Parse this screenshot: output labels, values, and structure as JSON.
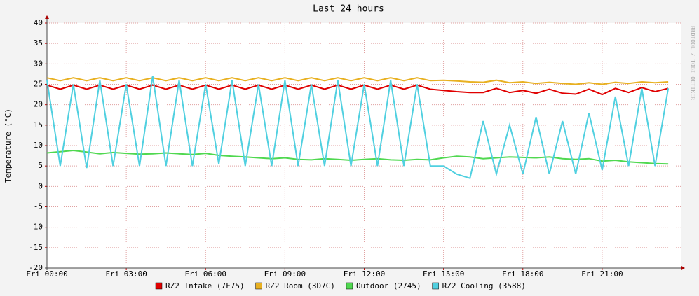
{
  "chart_data": {
    "type": "line",
    "title": "Last 24 hours",
    "y_label": "Temperature (°C)",
    "side_label": "RRDTOOL / TOBI OETIKER",
    "xlim": [
      0,
      24
    ],
    "ylim": [
      -20,
      40
    ],
    "yticks": [
      -20,
      -15,
      -10,
      -5,
      0,
      5,
      10,
      15,
      20,
      25,
      30,
      35,
      40
    ],
    "xticks": [
      {
        "value": 0,
        "label": "Fri 00:00"
      },
      {
        "value": 3,
        "label": "Fri 03:00"
      },
      {
        "value": 6,
        "label": "Fri 06:00"
      },
      {
        "value": 9,
        "label": "Fri 09:00"
      },
      {
        "value": 12,
        "label": "Fri 12:00"
      },
      {
        "value": 15,
        "label": "Fri 15:00"
      },
      {
        "value": 18,
        "label": "Fri 18:00"
      },
      {
        "value": 21,
        "label": "Fri 21:00"
      }
    ],
    "grid": true,
    "x": [
      0,
      0.5,
      1,
      1.5,
      2,
      2.5,
      3,
      3.5,
      4,
      4.5,
      5,
      5.5,
      6,
      6.5,
      7,
      7.5,
      8,
      8.5,
      9,
      9.5,
      10,
      10.5,
      11,
      11.5,
      12,
      12.5,
      13,
      13.5,
      14,
      14.5,
      15,
      15.5,
      16,
      16.5,
      17,
      17.5,
      18,
      18.5,
      19,
      19.5,
      20,
      20.5,
      21,
      21.5,
      22,
      22.5,
      23,
      23.5
    ],
    "series": [
      {
        "name": "RZ2 Intake (7F75)",
        "color": "#e00000",
        "values": [
          24.8,
          23.8,
          24.8,
          23.8,
          24.8,
          23.8,
          24.8,
          23.8,
          24.8,
          23.8,
          24.8,
          23.8,
          24.8,
          23.8,
          24.8,
          23.8,
          24.8,
          23.8,
          24.8,
          23.8,
          24.8,
          23.8,
          24.8,
          23.8,
          24.8,
          23.8,
          24.8,
          23.8,
          24.8,
          23.8,
          23.5,
          23.2,
          23,
          23,
          24,
          23,
          23.5,
          22.8,
          23.8,
          22.8,
          22.6,
          23.8,
          22.5,
          24,
          23,
          24.2,
          23.2,
          24
        ]
      },
      {
        "name": "RZ2 Room (3D7C)",
        "color": "#e8b020",
        "values": [
          26.6,
          25.9,
          26.6,
          25.9,
          26.6,
          25.9,
          26.6,
          25.9,
          26.6,
          25.9,
          26.6,
          25.9,
          26.6,
          25.9,
          26.6,
          25.9,
          26.6,
          25.9,
          26.6,
          25.9,
          26.6,
          25.9,
          26.6,
          25.9,
          26.6,
          25.9,
          26.6,
          25.9,
          26.6,
          25.9,
          26,
          25.8,
          25.6,
          25.5,
          26,
          25.4,
          25.6,
          25.2,
          25.5,
          25.2,
          25,
          25.4,
          25,
          25.5,
          25.2,
          25.6,
          25.4,
          25.6
        ]
      },
      {
        "name": "Outdoor (2745)",
        "color": "#50d850",
        "values": [
          8.2,
          8.5,
          8.8,
          8.4,
          8,
          8.3,
          8.1,
          7.9,
          8,
          8.2,
          8,
          7.8,
          8.1,
          7.6,
          7.4,
          7.2,
          7,
          6.8,
          7,
          6.6,
          6.5,
          6.8,
          6.6,
          6.4,
          6.6,
          6.8,
          6.5,
          6.4,
          6.6,
          6.5,
          7,
          7.4,
          7.2,
          6.8,
          7,
          7.2,
          7.1,
          7,
          7.2,
          6.8,
          6.6,
          6.8,
          6.2,
          6.4,
          6,
          5.8,
          5.6,
          5.5
        ]
      },
      {
        "name": "RZ2 Cooling (3588)",
        "color": "#50d0e0",
        "values": [
          26,
          5,
          25,
          4.5,
          26,
          5,
          25,
          5,
          27,
          5,
          26,
          5,
          25,
          5.5,
          26,
          5,
          25,
          5,
          26,
          5,
          25,
          5,
          26,
          5,
          25,
          5,
          26,
          5,
          25,
          5,
          5,
          3,
          2,
          16,
          3,
          15,
          3,
          17,
          3,
          16,
          3,
          18,
          4,
          22,
          5,
          24,
          5,
          24
        ]
      }
    ]
  }
}
